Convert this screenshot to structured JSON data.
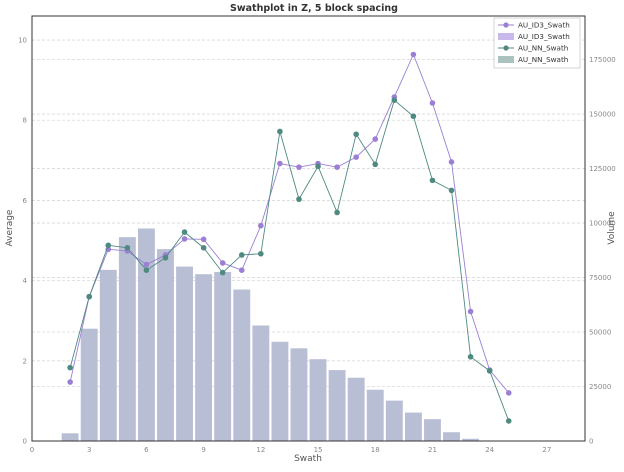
{
  "colors": {
    "id3": "#9b7fd4",
    "id3_bar": "#c9b8ec",
    "nn": "#4e8a82",
    "nn_bar": "#aac3c0",
    "axis": "#333333",
    "grid": "#d9d9d9",
    "tick_label": "#888888"
  },
  "chart_data": {
    "type": "bar+line",
    "title": "Swathplot in Z, 5 block spacing",
    "xlabel": "Swath",
    "ylabel_left": "Average",
    "ylabel_right": "Volume",
    "xlim": [
      0,
      29
    ],
    "ylim_left": [
      0,
      10.6
    ],
    "ylim_right": [
      0,
      195000
    ],
    "grid": true,
    "legend_position": "top-right",
    "x_ticks": [
      0,
      3,
      6,
      9,
      12,
      15,
      18,
      21,
      24,
      27
    ],
    "y_left_ticks": [
      0,
      2,
      4,
      6,
      8,
      10
    ],
    "y_right_ticks": [
      0,
      25000,
      50000,
      75000,
      100000,
      125000,
      150000,
      175000
    ],
    "x": [
      2,
      3,
      4,
      5,
      6,
      7,
      8,
      9,
      10,
      11,
      12,
      13,
      14,
      15,
      16,
      17,
      18,
      19,
      20,
      21,
      22,
      23,
      24,
      25
    ],
    "series": [
      {
        "name": "AU_ID3_Swath",
        "kind": "line",
        "axis": "left",
        "values": [
          1.47,
          3.6,
          4.78,
          4.74,
          4.4,
          4.64,
          5.04,
          5.03,
          4.44,
          4.26,
          5.37,
          6.92,
          6.83,
          6.92,
          6.83,
          7.08,
          7.53,
          8.58,
          9.64,
          8.43,
          6.96,
          3.23,
          1.77,
          1.2
        ]
      },
      {
        "name": "AU_ID3_Swath",
        "kind": "bar",
        "axis": "right",
        "values": [
          3500,
          51500,
          78500,
          93500,
          97500,
          88000,
          80000,
          76500,
          77500,
          69500,
          53000,
          45500,
          42500,
          37500,
          32500,
          29000,
          23500,
          18500,
          13000,
          10000,
          4000,
          1000,
          0,
          0
        ]
      },
      {
        "name": "AU_NN_Swath",
        "kind": "line",
        "axis": "left",
        "values": [
          1.83,
          3.6,
          4.88,
          4.82,
          4.26,
          4.57,
          5.21,
          4.82,
          4.2,
          4.64,
          4.67,
          7.72,
          6.03,
          6.85,
          5.7,
          7.65,
          6.9,
          8.5,
          8.1,
          6.5,
          6.25,
          2.1,
          1.75,
          0.5
        ]
      },
      {
        "name": "AU_NN_Swath",
        "kind": "bar",
        "axis": "right",
        "values": [
          3500,
          51500,
          78500,
          93500,
          97500,
          88000,
          80000,
          76500,
          77500,
          69500,
          53000,
          45500,
          42500,
          37500,
          32500,
          29000,
          23500,
          18500,
          13000,
          10000,
          4000,
          1000,
          0,
          0
        ]
      }
    ]
  }
}
